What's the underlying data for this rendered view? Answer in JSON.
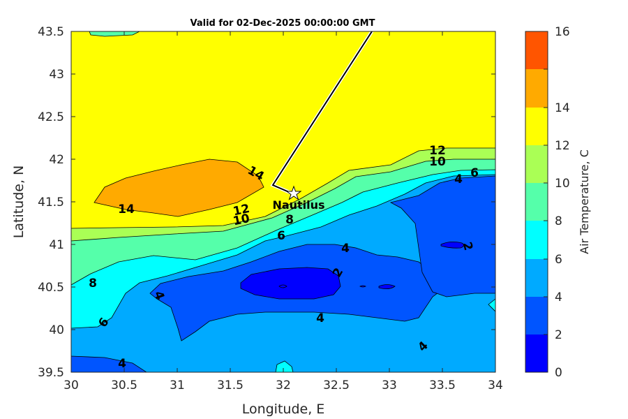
{
  "chart_data": {
    "type": "contour",
    "title": "Valid for 02-Dec-2025 00:00:00 GMT",
    "xlabel": "Longitude, E",
    "ylabel": "Latitude, N",
    "xlim": [
      30,
      34
    ],
    "ylim": [
      39.5,
      43.5
    ],
    "x_ticks": [
      "30",
      "30.5",
      "31",
      "31.5",
      "32",
      "32.5",
      "33",
      "33.5",
      "34"
    ],
    "y_ticks": [
      "43.5",
      "43",
      "42.5",
      "42",
      "41.5",
      "41",
      "40.5",
      "40",
      "39.5"
    ],
    "colorbar": {
      "label": "Air Temperature, C",
      "ticks": [
        "0",
        "2",
        "4",
        "6",
        "8",
        "10",
        "12",
        "14",
        "16"
      ],
      "levels": [
        0,
        2,
        4,
        6,
        8,
        10,
        12,
        14,
        16
      ],
      "colors": [
        "#0000ff",
        "#0055ff",
        "#00aaff",
        "#00ffff",
        "#55ffaa",
        "#aaff55",
        "#ffff00",
        "#ffaa00",
        "#ff5500"
      ]
    },
    "contour_labels": [
      "12",
      "10",
      "6",
      "4",
      "14",
      "14",
      "12",
      "10",
      "8",
      "6",
      "4",
      "2",
      "2",
      "8",
      "4",
      "6",
      "4",
      "4",
      "4"
    ],
    "point": {
      "name": "Nautilus",
      "lon": 32.1,
      "lat": 41.62
    },
    "track": [
      [
        32.85,
        43.5
      ],
      [
        31.9,
        41.7
      ],
      [
        32.1,
        41.62
      ]
    ]
  }
}
